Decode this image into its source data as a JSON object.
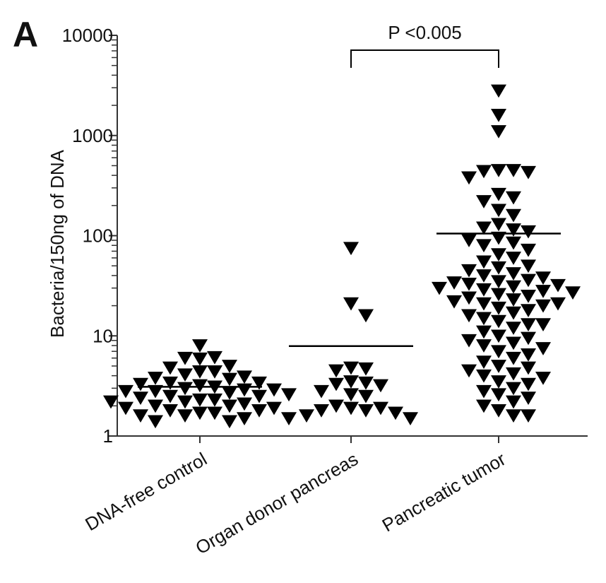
{
  "panel_label": "A",
  "colors": {
    "marker": "#000000",
    "axis": "#333333",
    "text": "#111111"
  },
  "chart_data": {
    "type": "scatter",
    "ylabel": "Bacteria/150ng of DNA",
    "xlabel": "",
    "yscale": "log",
    "ylim": [
      1,
      10000
    ],
    "ytick_labels": [
      "1",
      "10",
      "100",
      "1000",
      "10000"
    ],
    "marker": "triangle-down",
    "categories": [
      "DNA-free control",
      "Organ donor pancreas",
      "Pancreatic tumor"
    ],
    "series": [
      {
        "category": "DNA-free control",
        "mean": 3.1,
        "values": [
          8.0,
          6.1,
          6.0,
          5.9,
          5.0,
          4.8,
          4.4,
          4.4,
          4.1,
          3.9,
          3.8,
          3.7,
          3.4,
          3.4,
          3.3,
          3.2,
          3.1,
          3.0,
          2.9,
          2.9,
          2.8,
          2.8,
          2.7,
          2.6,
          2.5,
          2.5,
          2.4,
          2.3,
          2.3,
          2.2,
          2.2,
          2.1,
          2.0,
          2.0,
          1.9,
          1.9,
          1.8,
          1.8,
          1.7,
          1.7,
          1.6,
          1.6,
          1.5,
          1.5,
          1.4,
          1.4
        ]
      },
      {
        "category": "Organ donor pancreas",
        "mean": 7.9,
        "values": [
          75,
          21,
          16,
          4.8,
          4.7,
          4.5,
          3.5,
          3.4,
          3.3,
          3.2,
          2.8,
          2.6,
          2.5,
          2.0,
          1.9,
          1.9,
          1.8,
          1.8,
          1.7,
          1.6,
          1.5
        ]
      },
      {
        "category": "Pancreatic tumor",
        "mean": 105,
        "values": [
          2800,
          1600,
          1100,
          450,
          450,
          440,
          430,
          380,
          260,
          240,
          220,
          180,
          160,
          130,
          120,
          115,
          110,
          95,
          90,
          85,
          80,
          72,
          65,
          60,
          55,
          50,
          48,
          45,
          42,
          40,
          38,
          36,
          35,
          34,
          33,
          32,
          31,
          30,
          29,
          28,
          27,
          26,
          25,
          24,
          23,
          22,
          21,
          21,
          20,
          19,
          18,
          17,
          16,
          15,
          14,
          13,
          13,
          12,
          11,
          10,
          9.5,
          9,
          8.5,
          8,
          7.5,
          7,
          6.5,
          6,
          5.5,
          5,
          4.8,
          4.5,
          4.2,
          4,
          3.8,
          3.5,
          3.3,
          3,
          2.8,
          2.6,
          2.4,
          2.2,
          2,
          1.8,
          1.6,
          1.6
        ]
      }
    ],
    "annotations": [
      {
        "text": "P <0.005",
        "between": [
          "Organ donor pancreas",
          "Pancreatic tumor"
        ]
      }
    ]
  }
}
